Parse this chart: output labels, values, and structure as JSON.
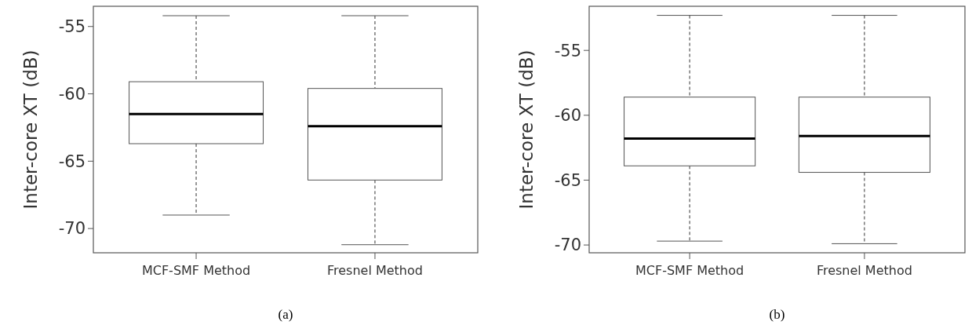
{
  "chart_data": [
    {
      "type": "box",
      "ylabel": "Inter-core XT (dB)",
      "categories": [
        "MCF-SMF Method",
        "Fresnel Method"
      ],
      "ylim": [
        -71.8,
        -53.5
      ],
      "yticks": [
        -55,
        -60,
        -65,
        -70
      ],
      "grid": false,
      "annotations": [
        "(a)"
      ],
      "boxes": [
        {
          "low": -69.0,
          "q1": -63.7,
          "median": -61.5,
          "q3": -59.1,
          "high": -54.2
        },
        {
          "low": -71.2,
          "q1": -66.4,
          "median": -62.4,
          "q3": -59.6,
          "high": -54.2
        }
      ]
    },
    {
      "type": "box",
      "ylabel": "Inter-core XT (dB)",
      "categories": [
        "MCF-SMF Method",
        "Fresnel Method"
      ],
      "ylim": [
        -70.6,
        -51.6
      ],
      "yticks": [
        -55,
        -60,
        -65,
        -70
      ],
      "grid": false,
      "annotations": [
        "(b)"
      ],
      "boxes": [
        {
          "low": -69.7,
          "q1": -63.9,
          "median": -61.8,
          "q3": -58.6,
          "high": -52.3
        },
        {
          "low": -69.9,
          "q1": -64.4,
          "median": -61.6,
          "q3": -58.6,
          "high": -52.3
        }
      ]
    }
  ]
}
